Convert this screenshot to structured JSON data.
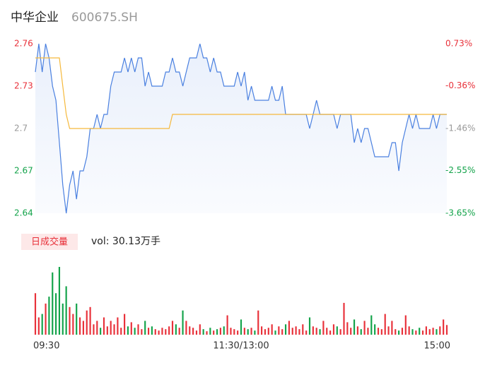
{
  "chart_data": {
    "type": "intraday",
    "title": "中华企业",
    "subtitle": "600675.SH",
    "xlim": [
      0,
      120
    ],
    "xticks": [
      {
        "value": 0,
        "label": "09:30"
      },
      {
        "value": 60,
        "label": "11:30/13:00"
      },
      {
        "value": 120,
        "label": "15:00"
      }
    ],
    "ylim": [
      2.64,
      2.76
    ],
    "yticks": [
      2.64,
      2.67,
      2.7,
      2.73,
      2.76
    ],
    "y2lim": [
      -3.65,
      0.73
    ],
    "y2ticks": [
      {
        "value": -3.65,
        "label": "-3.65%"
      },
      {
        "value": -2.55,
        "label": "-2.55%"
      },
      {
        "value": -1.46,
        "label": "-1.46%"
      },
      {
        "value": -0.36,
        "label": "-0.36%"
      },
      {
        "value": 0.73,
        "label": "0.73%"
      }
    ],
    "up_color": "#e8313a",
    "down_color": "#13a34a",
    "flat_color": "#999999",
    "series": [
      {
        "name": "price",
        "color": "#4a80e0",
        "values": [
          2.74,
          2.76,
          2.74,
          2.76,
          2.75,
          2.73,
          2.72,
          2.69,
          2.66,
          2.64,
          2.66,
          2.67,
          2.65,
          2.67,
          2.67,
          2.68,
          2.7,
          2.7,
          2.71,
          2.7,
          2.71,
          2.71,
          2.73,
          2.74,
          2.74,
          2.74,
          2.75,
          2.74,
          2.75,
          2.74,
          2.75,
          2.75,
          2.73,
          2.74,
          2.73,
          2.73,
          2.73,
          2.73,
          2.74,
          2.74,
          2.75,
          2.74,
          2.74,
          2.73,
          2.74,
          2.75,
          2.75,
          2.75,
          2.76,
          2.75,
          2.75,
          2.74,
          2.75,
          2.74,
          2.74,
          2.73,
          2.73,
          2.73,
          2.73,
          2.74,
          2.73,
          2.74,
          2.72,
          2.73,
          2.72,
          2.72,
          2.72,
          2.72,
          2.72,
          2.73,
          2.72,
          2.72,
          2.73,
          2.71,
          2.71,
          2.71,
          2.71,
          2.71,
          2.71,
          2.71,
          2.7,
          2.71,
          2.72,
          2.71,
          2.71,
          2.71,
          2.71,
          2.71,
          2.7,
          2.71,
          2.71,
          2.71,
          2.71,
          2.69,
          2.7,
          2.69,
          2.7,
          2.7,
          2.69,
          2.68,
          2.68,
          2.68,
          2.68,
          2.68,
          2.69,
          2.69,
          2.67,
          2.69,
          2.7,
          2.71,
          2.7,
          2.71,
          2.7,
          2.7,
          2.7,
          2.7,
          2.71,
          2.7,
          2.71,
          2.71,
          2.71
        ]
      },
      {
        "name": "average",
        "color": "#f5b93c",
        "values": [
          2.75,
          2.75,
          2.75,
          2.75,
          2.75,
          2.75,
          2.75,
          2.75,
          2.73,
          2.71,
          2.7,
          2.7,
          2.7,
          2.7,
          2.7,
          2.7,
          2.7,
          2.7,
          2.7,
          2.7,
          2.7,
          2.7,
          2.7,
          2.7,
          2.7,
          2.7,
          2.7,
          2.7,
          2.7,
          2.7,
          2.7,
          2.7,
          2.7,
          2.7,
          2.7,
          2.7,
          2.7,
          2.7,
          2.7,
          2.7,
          2.71,
          2.71,
          2.71,
          2.71,
          2.71,
          2.71,
          2.71,
          2.71,
          2.71,
          2.71,
          2.71,
          2.71,
          2.71,
          2.71,
          2.71,
          2.71,
          2.71,
          2.71,
          2.71,
          2.71,
          2.71,
          2.71,
          2.71,
          2.71,
          2.71,
          2.71,
          2.71,
          2.71,
          2.71,
          2.71,
          2.71,
          2.71,
          2.71,
          2.71,
          2.71,
          2.71,
          2.71,
          2.71,
          2.71,
          2.71,
          2.71,
          2.71,
          2.71,
          2.71,
          2.71,
          2.71,
          2.71,
          2.71,
          2.71,
          2.71,
          2.71,
          2.71,
          2.71,
          2.71,
          2.71,
          2.71,
          2.71,
          2.71,
          2.71,
          2.71,
          2.71,
          2.71,
          2.71,
          2.71,
          2.71,
          2.71,
          2.71,
          2.71,
          2.71,
          2.71,
          2.71,
          2.71,
          2.71,
          2.71,
          2.71,
          2.71,
          2.71,
          2.71,
          2.71,
          2.71,
          2.71
        ]
      }
    ],
    "volume": {
      "legend": "日成交量",
      "label": "vol: 30.13万手",
      "values": [
        60,
        25,
        30,
        45,
        55,
        90,
        60,
        98,
        45,
        70,
        40,
        30,
        45,
        25,
        20,
        35,
        40,
        15,
        20,
        10,
        25,
        12,
        20,
        15,
        25,
        10,
        30,
        12,
        18,
        10,
        15,
        8,
        20,
        10,
        12,
        8,
        6,
        10,
        8,
        12,
        20,
        15,
        10,
        35,
        20,
        12,
        10,
        6,
        15,
        8,
        5,
        10,
        6,
        8,
        10,
        12,
        28,
        10,
        8,
        6,
        22,
        10,
        8,
        10,
        6,
        35,
        12,
        8,
        10,
        15,
        6,
        12,
        8,
        15,
        20,
        10,
        12,
        8,
        15,
        6,
        25,
        12,
        10,
        8,
        20,
        10,
        6,
        15,
        12,
        8,
        46,
        18,
        10,
        22,
        12,
        8,
        20,
        10,
        28,
        15,
        10,
        8,
        30,
        12,
        20,
        8,
        6,
        10,
        28,
        12,
        8,
        6,
        10,
        6,
        12,
        8,
        10,
        8,
        12,
        22,
        14
      ]
    }
  }
}
